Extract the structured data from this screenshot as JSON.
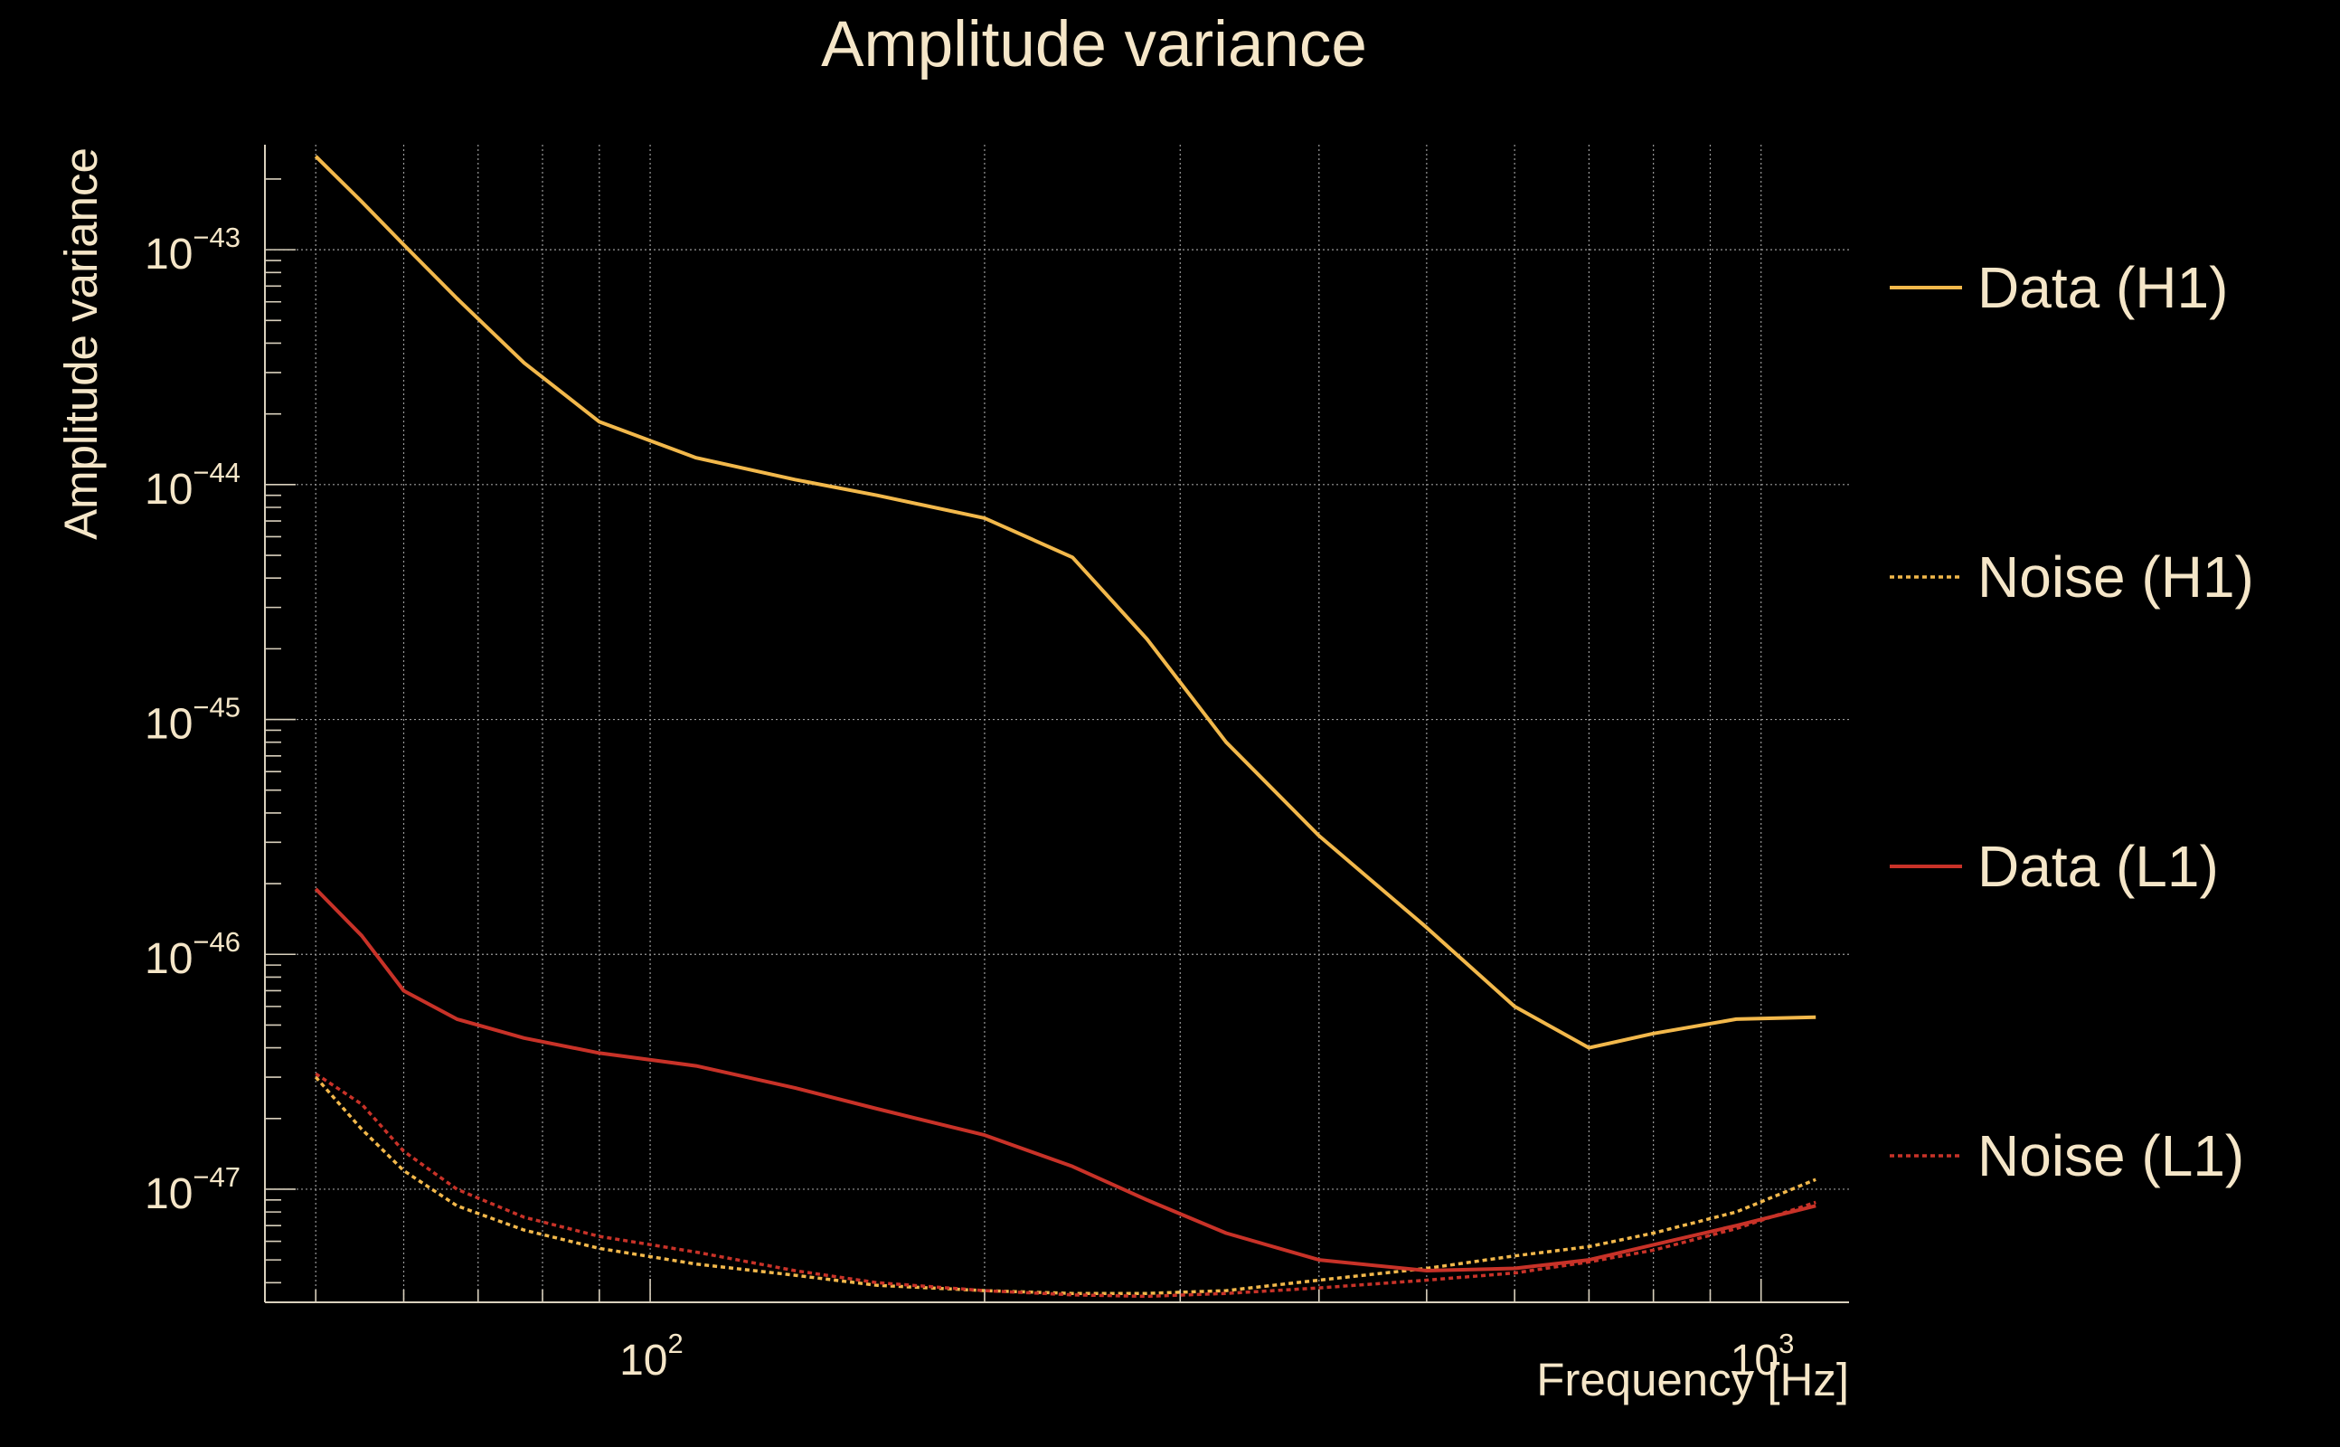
{
  "colors": {
    "background": "#000000",
    "text": "#f5e6c8",
    "grid": "#9a9a9a",
    "axis": "#d9d0bd",
    "h1": "#f2b84b",
    "l1": "#c83228"
  },
  "chart_data": {
    "type": "line",
    "title": "Amplitude variance",
    "xlabel": "Frequency [Hz]",
    "ylabel": "Amplitude variance",
    "xscale": "log",
    "yscale": "log",
    "xlim": [
      45,
      1200
    ],
    "ylim": [
      3.3e-48,
      2.8e-43
    ],
    "grid": true,
    "legend_position": "right",
    "x_ticks": [
      {
        "base": "10",
        "exp": "2",
        "value": 100
      },
      {
        "base": "10",
        "exp": "3",
        "value": 1000
      }
    ],
    "y_ticks": [
      {
        "base": "10",
        "exp": "−43",
        "value": 1e-43
      },
      {
        "base": "10",
        "exp": "−44",
        "value": 1e-44
      },
      {
        "base": "10",
        "exp": "−45",
        "value": 1e-45
      },
      {
        "base": "10",
        "exp": "−46",
        "value": 1e-46
      },
      {
        "base": "10",
        "exp": "−47",
        "value": 1e-47
      }
    ],
    "series": [
      {
        "name": "Data (H1)",
        "color": "#f2b84b",
        "style": "solid",
        "x": [
          50,
          55,
          60,
          67,
          77,
          90,
          110,
          135,
          160,
          200,
          240,
          280,
          330,
          400,
          500,
          600,
          700,
          800,
          950,
          1120
        ],
        "y": [
          2.5e-43,
          1.6e-43,
          1.05e-43,
          6.2e-44,
          3.3e-44,
          1.85e-44,
          1.3e-44,
          1.05e-44,
          9e-45,
          7.2e-45,
          4.9e-45,
          2.2e-45,
          8e-46,
          3.2e-46,
          1.3e-46,
          6e-47,
          4e-47,
          4.6e-47,
          5.3e-47,
          5.4e-47
        ]
      },
      {
        "name": "Noise (H1)",
        "color": "#f2b84b",
        "style": "dotted",
        "x": [
          50,
          55,
          60,
          67,
          77,
          90,
          110,
          135,
          160,
          200,
          240,
          280,
          330,
          400,
          500,
          600,
          700,
          800,
          950,
          1120
        ],
        "y": [
          3e-47,
          1.8e-47,
          1.2e-47,
          8.5e-48,
          6.7e-48,
          5.6e-48,
          4.8e-48,
          4.3e-48,
          3.9e-48,
          3.7e-48,
          3.6e-48,
          3.6e-48,
          3.7e-48,
          4.1e-48,
          4.6e-48,
          5.2e-48,
          5.7e-48,
          6.5e-48,
          8e-48,
          1.1e-47
        ]
      },
      {
        "name": "Data (L1)",
        "color": "#c83228",
        "style": "solid",
        "x": [
          50,
          55,
          60,
          67,
          77,
          90,
          110,
          135,
          160,
          200,
          240,
          280,
          330,
          400,
          500,
          600,
          700,
          800,
          950,
          1120
        ],
        "y": [
          1.9e-46,
          1.2e-46,
          7e-47,
          5.3e-47,
          4.4e-47,
          3.8e-47,
          3.35e-47,
          2.7e-47,
          2.2e-47,
          1.7e-47,
          1.25e-47,
          9e-48,
          6.5e-48,
          5e-48,
          4.5e-48,
          4.6e-48,
          5e-48,
          5.8e-48,
          7e-48,
          8.5e-48
        ]
      },
      {
        "name": "Noise (L1)",
        "color": "#c83228",
        "style": "dotted",
        "x": [
          50,
          55,
          60,
          67,
          77,
          90,
          110,
          135,
          160,
          200,
          240,
          280,
          330,
          400,
          500,
          600,
          700,
          800,
          950,
          1120
        ],
        "y": [
          3.1e-47,
          2.3e-47,
          1.45e-47,
          1e-47,
          7.6e-48,
          6.3e-48,
          5.4e-48,
          4.5e-48,
          4e-48,
          3.7e-48,
          3.55e-48,
          3.5e-48,
          3.6e-48,
          3.8e-48,
          4.1e-48,
          4.4e-48,
          4.9e-48,
          5.5e-48,
          6.8e-48,
          8.8e-48
        ]
      }
    ]
  }
}
